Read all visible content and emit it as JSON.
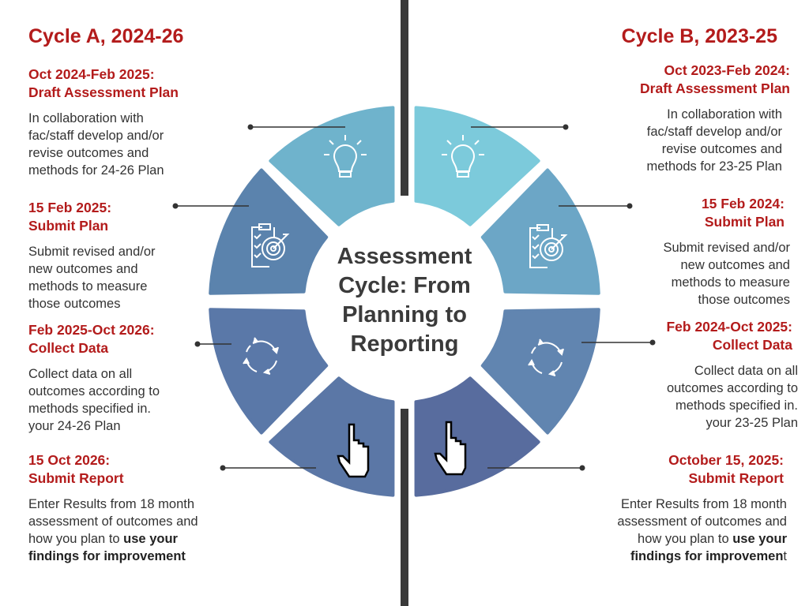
{
  "center_title": [
    "Assessment",
    "Cycle: From",
    "Planning to",
    "Reporting"
  ],
  "cycle_a": {
    "heading": "Cycle A, 2024-26",
    "steps": [
      {
        "title1": "Oct 2024-Feb 2025:",
        "title2": "Draft Assessment Plan",
        "body": [
          "In collaboration with",
          "fac/staff develop and/or",
          "revise outcomes and",
          "methods for 24-26 Plan"
        ],
        "icon": "lightbulb-icon"
      },
      {
        "title1": "15 Feb 2025:",
        "title2": "Submit Plan",
        "body": [
          "Submit revised and/or",
          "new outcomes and",
          "methods to measure",
          "those outcomes"
        ],
        "icon": "clipboard-target-icon"
      },
      {
        "title1": "Feb 2025-Oct 2026:",
        "title2": "Collect Data",
        "body": [
          "Collect data on all",
          "outcomes according to",
          "methods specified in.",
          "your 24-26 Plan"
        ],
        "icon": "cycle-arrows-icon"
      },
      {
        "title1": "15 Oct 2026:",
        "title2": "Submit Report",
        "body": [
          "Enter Results from 18 month",
          "assessment of outcomes and",
          "how you plan to "
        ],
        "bold1": "use your",
        "bold2": "findings for improvement",
        "tail": "",
        "icon": "hand-pointer-icon"
      }
    ]
  },
  "cycle_b": {
    "heading": "Cycle B, 2023-25",
    "steps": [
      {
        "title1": "Oct 2023-Feb 2024:",
        "title2": "Draft Assessment Plan",
        "body": [
          "In collaboration with",
          "fac/staff develop and/or",
          "revise outcomes and",
          "methods for 23-25 Plan"
        ],
        "icon": "lightbulb-icon"
      },
      {
        "title1": "15 Feb 2024:",
        "title2": "Submit Plan",
        "body": [
          "Submit revised and/or",
          "new outcomes and",
          "methods to measure",
          "those outcomes"
        ],
        "icon": "clipboard-target-icon"
      },
      {
        "title1": "Feb 2024-Oct 2025:",
        "title2": "Collect Data",
        "body": [
          "Collect data on all",
          "outcomes according to",
          "methods specified in.",
          "your 23-25 Plan"
        ],
        "icon": "cycle-arrows-icon"
      },
      {
        "title1": "October 15, 2025:",
        "title2": "Submit Report",
        "body": [
          "Enter Results from 18 month",
          "assessment of outcomes and",
          "how you plan to "
        ],
        "bold1": "use your",
        "bold2": "findings for improvemen",
        "tail": "t",
        "icon": "hand-pointer-icon"
      }
    ]
  },
  "colors": {
    "title_red": "#b31b1b",
    "divider": "#3a3a3a",
    "segments_a": [
      "#6fb3cc",
      "#5b83ad",
      "#5a78a8",
      "#5b77a6"
    ],
    "segments_b": [
      "#7ccadb",
      "#6ca6c6",
      "#6185b0",
      "#586c9e"
    ]
  }
}
